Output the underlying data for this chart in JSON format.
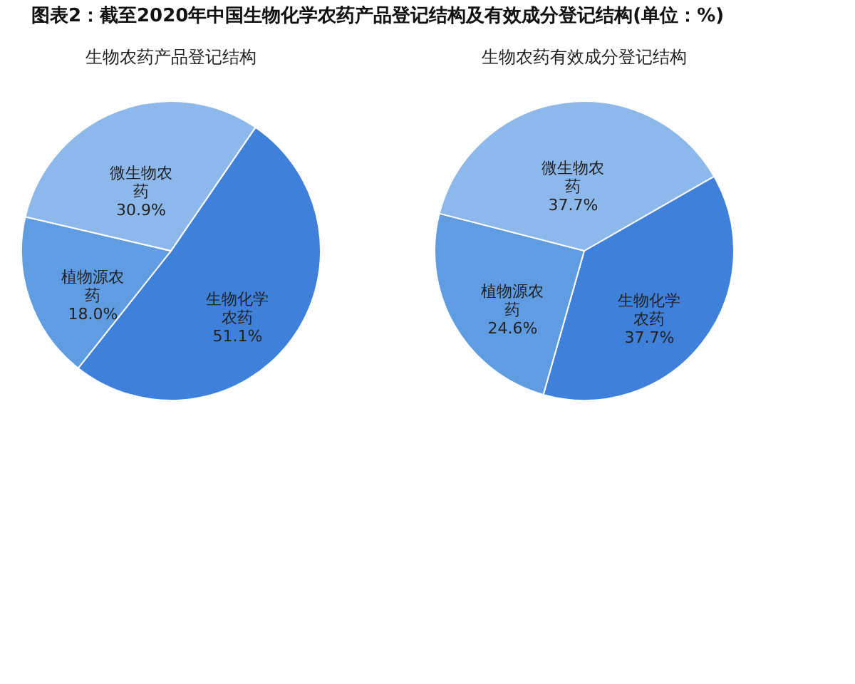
{
  "chart_data": [
    {
      "type": "pie",
      "title": "图表2：截至2020年中国生物化学农药产品登记结构及有效成分登记结构(单位：%)",
      "subtitle": "生物农药产品登记结构",
      "categories": [
        "生物化学农药",
        "植物源农药",
        "微生物农药"
      ],
      "values": [
        51.1,
        18.0,
        30.9
      ],
      "value_labels": [
        "51.1%",
        "18.0%",
        "30.9%"
      ],
      "colors": [
        "#3f80da",
        "#5f9ce2",
        "#8cb8ec"
      ],
      "legend": false
    },
    {
      "type": "pie",
      "subtitle": "生物农药有效成分登记结构",
      "categories": [
        "生物化学农药",
        "植物源农药",
        "微生物农药"
      ],
      "values": [
        37.7,
        24.6,
        37.7
      ],
      "value_labels": [
        "37.7%",
        "24.6%",
        "37.7%"
      ],
      "colors": [
        "#3f80da",
        "#5f9ce2",
        "#8cb8ec"
      ],
      "legend": false
    }
  ]
}
